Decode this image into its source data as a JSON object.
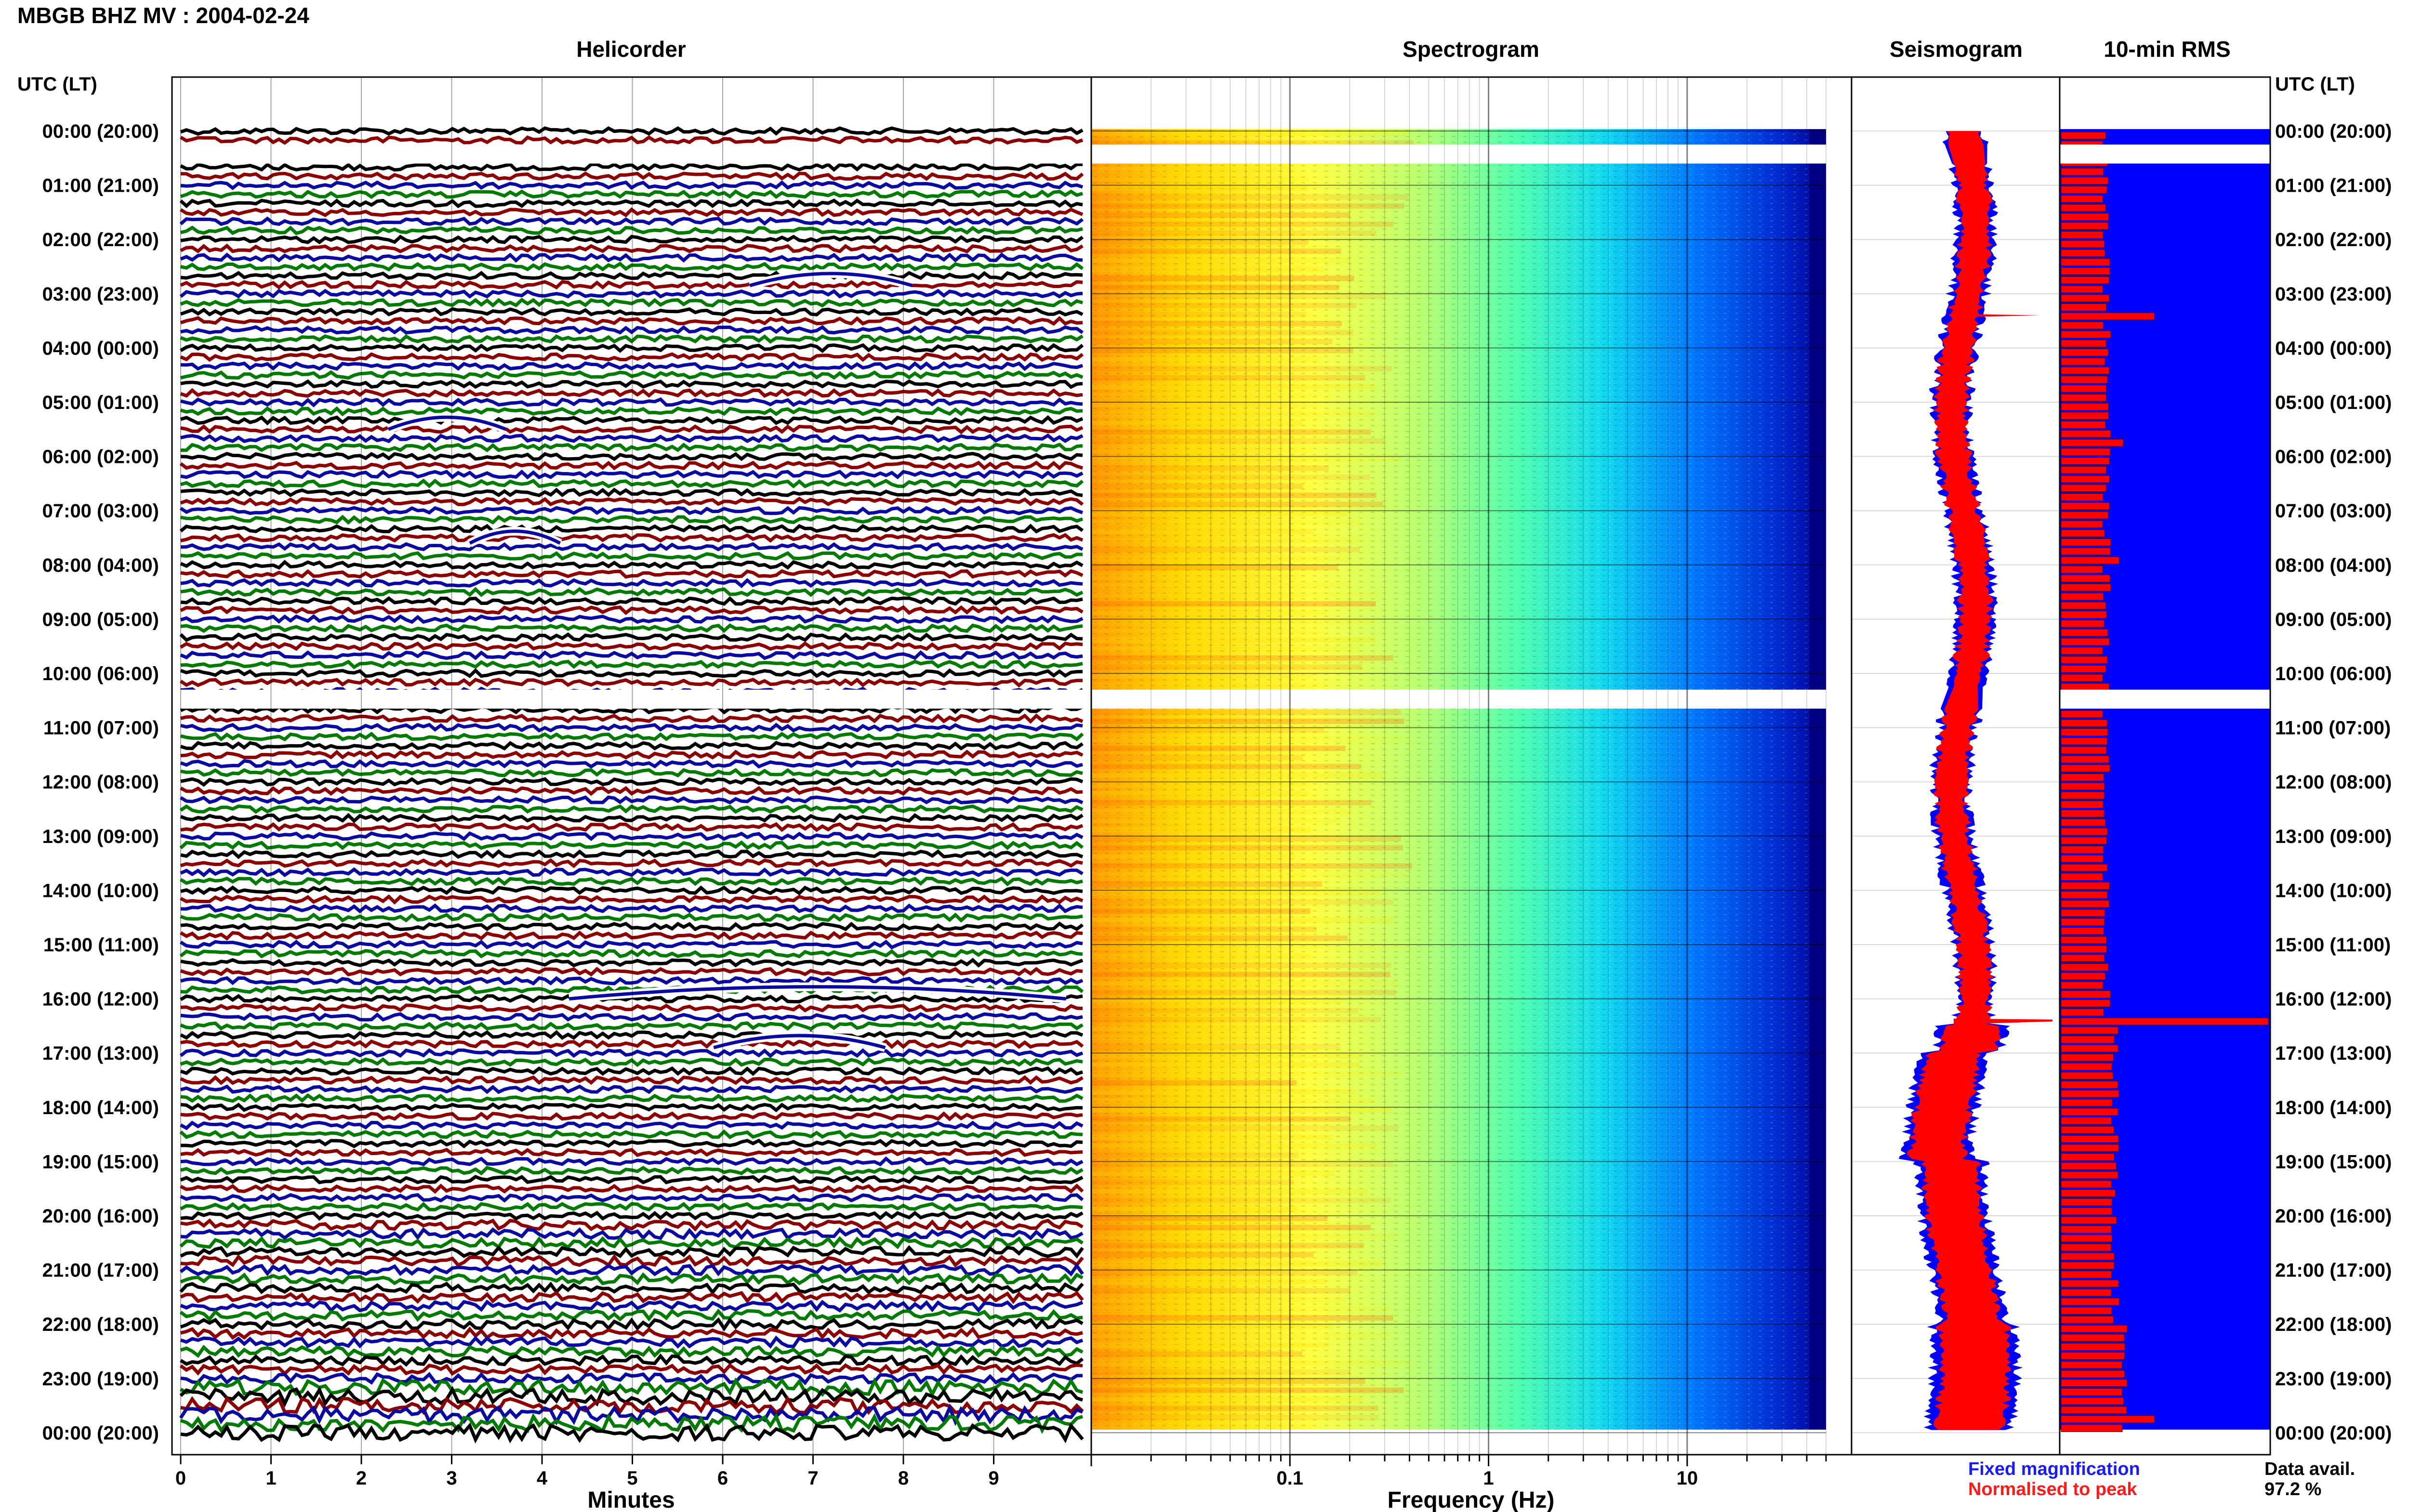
{
  "header": {
    "title": "MBGB BHZ MV : 2004-02-24"
  },
  "panels": {
    "helicorder": "Helicorder",
    "spectrogram": "Spectrogram",
    "seismogram": "Seismogram",
    "rms": "10-min RMS"
  },
  "axis": {
    "utc_header": "UTC (LT)",
    "hour_labels": [
      "00:00 (20:00)",
      "01:00 (21:00)",
      "02:00 (22:00)",
      "03:00 (23:00)",
      "04:00 (00:00)",
      "05:00 (01:00)",
      "06:00 (02:00)",
      "07:00 (03:00)",
      "08:00 (04:00)",
      "09:00 (05:00)",
      "10:00 (06:00)",
      "11:00 (07:00)",
      "12:00 (08:00)",
      "13:00 (09:00)",
      "14:00 (10:00)",
      "15:00 (11:00)",
      "16:00 (12:00)",
      "17:00 (13:00)",
      "18:00 (14:00)",
      "19:00 (15:00)",
      "20:00 (16:00)",
      "21:00 (17:00)",
      "22:00 (18:00)",
      "23:00 (19:00)",
      "00:00 (20:00)"
    ],
    "minutes_label": "Minutes",
    "minute_ticks": [
      "0",
      "1",
      "2",
      "3",
      "4",
      "5",
      "6",
      "7",
      "8",
      "9"
    ],
    "frequency_label": "Frequency (Hz)",
    "frequency_ticks": [
      "0.1",
      "1",
      "10"
    ]
  },
  "legend": {
    "fixed": "Fixed magnification",
    "normalised": "Normalised to peak"
  },
  "data_avail": {
    "label": "Data avail.",
    "value": "97.2 %"
  },
  "colors": {
    "trace_cycle": [
      "#000000",
      "#8b0000",
      "#0a0aa0",
      "#007a00"
    ],
    "rms_background": "#0000ff",
    "rms_bar": "#ff0000",
    "seismo_fixed": "#0000ff",
    "seismo_norm": "#ff0000"
  },
  "chart_data": [
    {
      "type": "line",
      "name": "helicorder",
      "x_range_minutes": [
        0,
        10
      ],
      "rows_per_hour": 6,
      "hours": 24,
      "data_gaps_hours": [
        [
          0.25,
          0.6
        ],
        [
          10.3,
          10.65
        ]
      ],
      "events": [
        {
          "hour": 2.85,
          "minute_start": 6.3,
          "minute_end": 8.1
        },
        {
          "hour": 5.5,
          "minute_start": 2.3,
          "minute_end": 3.6
        },
        {
          "hour": 7.6,
          "minute_start": 3.2,
          "minute_end": 4.2
        },
        {
          "hour": 16.0,
          "minute_start": 4.3,
          "minute_end": 9.8
        },
        {
          "hour": 16.9,
          "minute_start": 5.9,
          "minute_end": 7.8
        }
      ]
    },
    {
      "type": "heatmap",
      "name": "spectrogram",
      "xscale": "log",
      "xlim_hz": [
        0.01,
        50
      ],
      "ylim_hours": [
        0,
        24
      ],
      "colormap": "jet",
      "data_gaps_hours": [
        [
          0.25,
          0.6
        ],
        [
          10.3,
          10.65
        ]
      ]
    },
    {
      "type": "line",
      "name": "seismogram",
      "ylim_hours": [
        0,
        24
      ],
      "large_event_hour": 16.4,
      "series": [
        {
          "name": "Fixed magnification",
          "color": "#0000ff"
        },
        {
          "name": "Normalised to peak",
          "color": "#ff0000"
        }
      ]
    },
    {
      "type": "bar",
      "name": "rms",
      "orientation": "horizontal",
      "bins_per_hour": 6,
      "peaks": [
        {
          "hour": 3.4,
          "value": 0.45
        },
        {
          "hour": 5.8,
          "value": 0.3
        },
        {
          "hour": 7.9,
          "value": 0.28
        },
        {
          "hour": 16.4,
          "value": 1.0
        },
        {
          "hour": 17.4,
          "value": 0.25
        },
        {
          "hour": 23.8,
          "value": 0.45
        }
      ],
      "baseline_value": 0.22,
      "data_gaps_hours": [
        [
          0.25,
          0.6
        ],
        [
          10.3,
          10.65
        ]
      ]
    }
  ]
}
